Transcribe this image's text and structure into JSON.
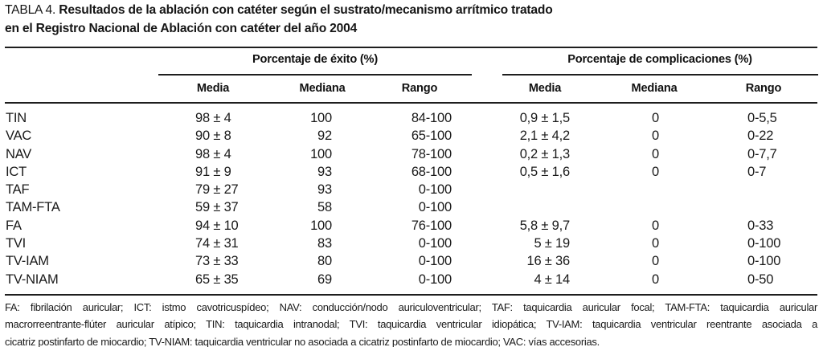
{
  "title": {
    "prefix": "TABLA 4.",
    "line1": "Resultados de la ablación con catéter según el sustrato/mecanismo arrítmico tratado",
    "line2": "en el Registro Nacional de Ablación con catéter del año 2004"
  },
  "header": {
    "exito_group": "Porcentaje de éxito (%)",
    "comp_group": "Porcentaje de complicaciones (%)",
    "sub": [
      "Media",
      "Mediana",
      "Rango"
    ]
  },
  "rows": [
    {
      "label": "TIN",
      "e_media": "98 ± 4",
      "e_mediana": "100",
      "e_rango": "84-100",
      "c_media": "0,9 ± 1,5",
      "c_mediana": "0",
      "c_rango": "0-5,5"
    },
    {
      "label": "VAC",
      "e_media": "90 ± 8",
      "e_mediana": "92",
      "e_rango": "65-100",
      "c_media": "2,1 ± 4,2",
      "c_mediana": "0",
      "c_rango": "0-22"
    },
    {
      "label": "NAV",
      "e_media": "98 ± 4",
      "e_mediana": "100",
      "e_rango": "78-100",
      "c_media": "0,2 ± 1,3",
      "c_mediana": "0",
      "c_rango": "0-7,7"
    },
    {
      "label": "ICT",
      "e_media": "91 ± 9",
      "e_mediana": "93",
      "e_rango": "68-100",
      "c_media": "0,5 ± 1,6",
      "c_mediana": "0",
      "c_rango": "0-7"
    },
    {
      "label": "TAF",
      "e_media": "79 ± 27",
      "e_mediana": "93",
      "e_rango": "0-100",
      "c_media": "",
      "c_mediana": "",
      "c_rango": ""
    },
    {
      "label": "TAM-FTA",
      "e_media": "59 ± 37",
      "e_mediana": "58",
      "e_rango": "0-100",
      "c_media": "",
      "c_mediana": "",
      "c_rango": ""
    },
    {
      "label": "FA",
      "e_media": "94 ± 10",
      "e_mediana": "100",
      "e_rango": "76-100",
      "c_media": "5,8 ± 9,7",
      "c_mediana": "0",
      "c_rango": "0-33"
    },
    {
      "label": "TVI",
      "e_media": "74 ± 31",
      "e_mediana": "83",
      "e_rango": "0-100",
      "c_media": "5 ± 19",
      "c_mediana": "0",
      "c_rango": "0-100"
    },
    {
      "label": "TV-IAM",
      "e_media": "73 ± 33",
      "e_mediana": "80",
      "e_rango": "0-100",
      "c_media": "16 ± 36",
      "c_mediana": "0",
      "c_rango": "0-100"
    },
    {
      "label": "TV-NIAM",
      "e_media": "65 ± 35",
      "e_mediana": "69",
      "e_rango": "0-100",
      "c_media": "4 ± 14",
      "c_mediana": "0",
      "c_rango": "0-50"
    }
  ],
  "footnote": {
    "lines": [
      "FA: fibrilación auricular; ICT: istmo cavotricuspídeo; NAV: conducción/nodo auriculoventricular; TAF: taquicardia auricular focal; TAM-FTA: taquicardia auricular",
      "macrorreentrante-flúter auricular atípico; TIN: taquicardia intranodal; TVI: taquicardia ventricular idiopática; TV-IAM: taquicardia ventricular reentrante asociada a",
      "cicatriz postinfarto de miocardio; TV-NIAM: taquicardia ventricular no asociada a cicatriz postinfarto de miocardio; VAC: vías accesorias."
    ]
  },
  "colors": {
    "background": "#ffffff",
    "text": "#1a1a1a",
    "rule": "#1e1e1e"
  }
}
